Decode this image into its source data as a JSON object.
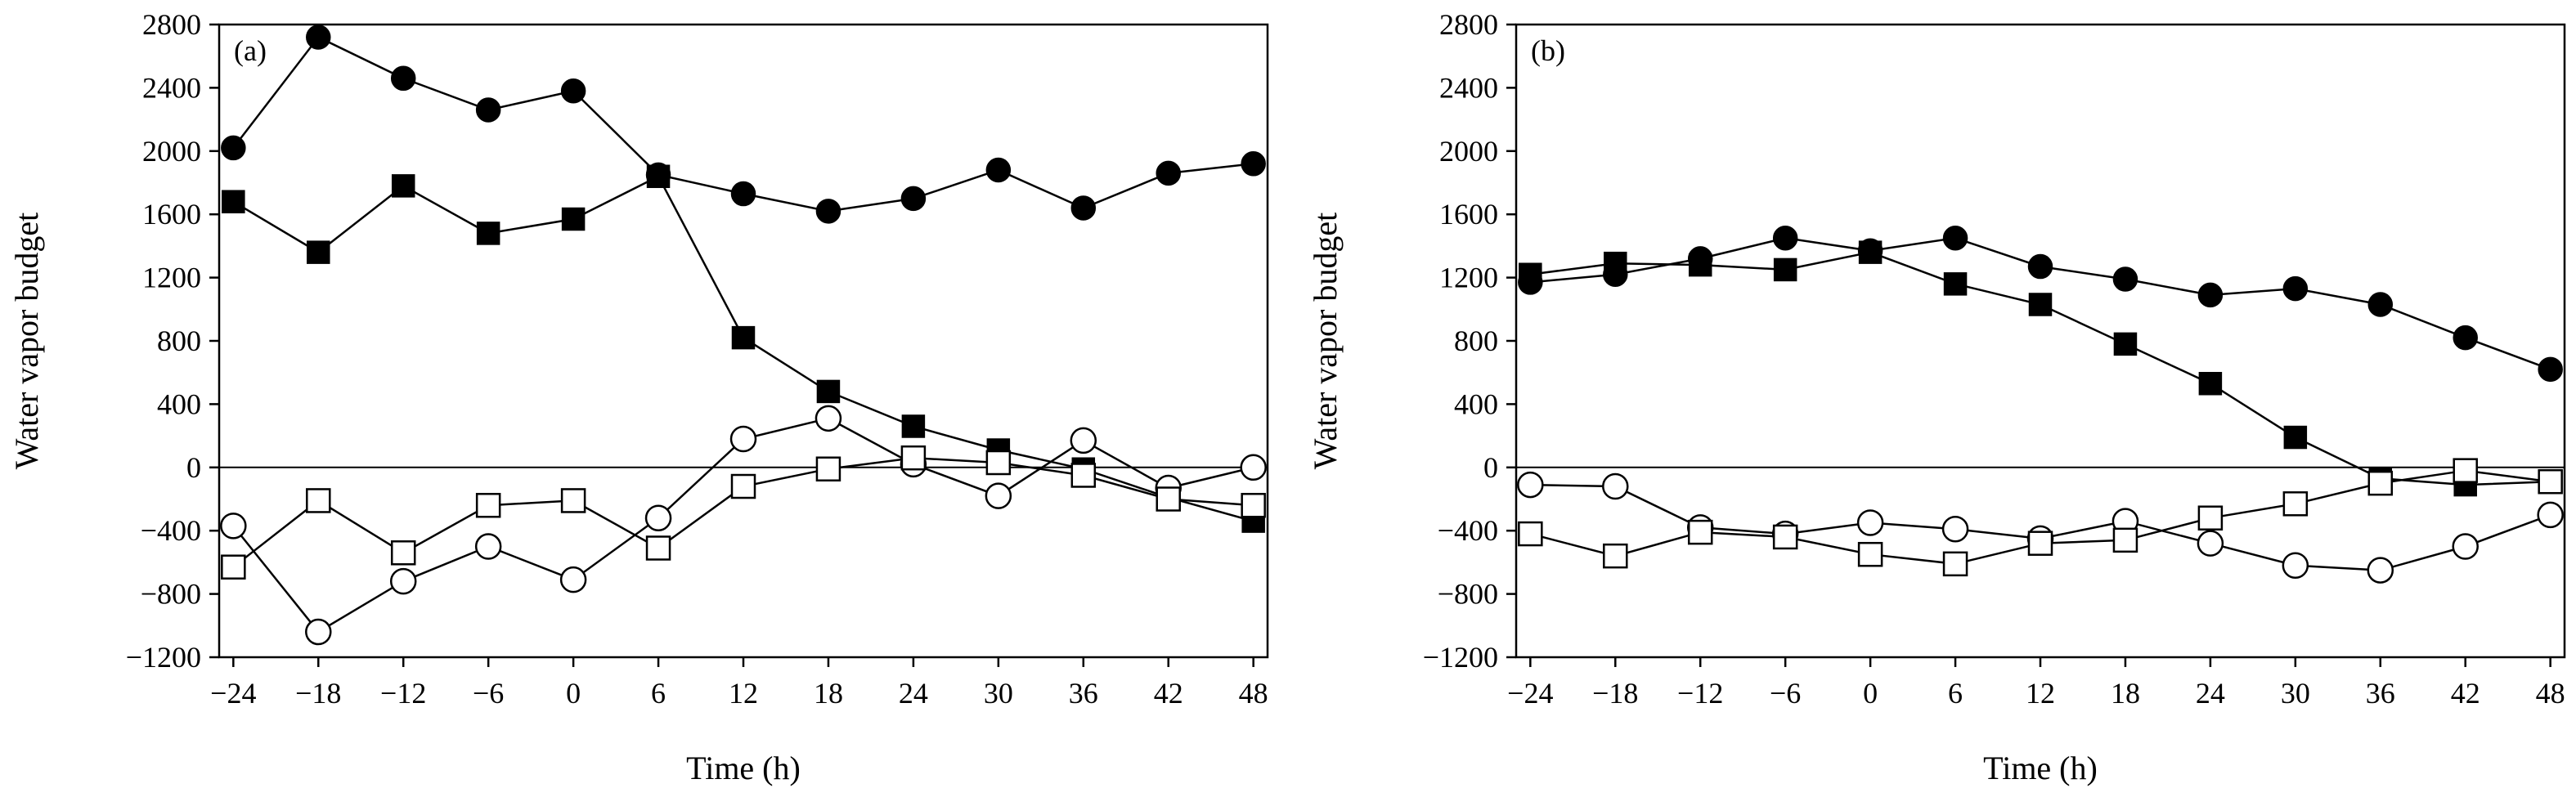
{
  "chart_data": [
    {
      "type": "line",
      "panel_label": "(a)",
      "xlabel": "Time (h)",
      "ylabel": "Water vapor budget",
      "x": [
        -24,
        -18,
        -12,
        -6,
        0,
        6,
        12,
        18,
        24,
        30,
        36,
        42,
        48
      ],
      "x_tick_labels": [
        "−24",
        "−18",
        "−12",
        "−6",
        "0",
        "6",
        "12",
        "18",
        "24",
        "30",
        "36",
        "42",
        "48"
      ],
      "y_ticks": [
        2800,
        2400,
        2000,
        1600,
        1200,
        800,
        400,
        0,
        -400,
        -800,
        -1200
      ],
      "y_tick_labels": [
        "2800",
        "2400",
        "2000",
        "1600",
        "1200",
        "800",
        "400",
        "0",
        "−400",
        "−800",
        "−1200"
      ],
      "ylim": [
        -1200,
        2800
      ],
      "xlim": [
        -25,
        49
      ],
      "zero_line": true,
      "series": [
        {
          "marker": "circle-filled",
          "values": [
            2020,
            2720,
            2460,
            2260,
            2380,
            1850,
            1730,
            1620,
            1700,
            1880,
            1640,
            1860,
            1920
          ]
        },
        {
          "marker": "square-filled",
          "values": [
            1680,
            1360,
            1780,
            1480,
            1570,
            1840,
            820,
            480,
            260,
            110,
            -10,
            -190,
            -340
          ]
        },
        {
          "marker": "circle-open",
          "values": [
            -370,
            -1040,
            -720,
            -500,
            -710,
            -320,
            180,
            310,
            20,
            -180,
            170,
            -130,
            0
          ]
        },
        {
          "marker": "square-open",
          "values": [
            -630,
            -210,
            -540,
            -240,
            -210,
            -510,
            -120,
            -10,
            60,
            30,
            -50,
            -200,
            -240
          ]
        }
      ]
    },
    {
      "type": "line",
      "panel_label": "(b)",
      "xlabel": "Time (h)",
      "ylabel": "Water vapor budget",
      "x": [
        -24,
        -18,
        -12,
        -6,
        0,
        6,
        12,
        18,
        24,
        30,
        36,
        42,
        48
      ],
      "x_tick_labels": [
        "−24",
        "−18",
        "−12",
        "−6",
        "0",
        "6",
        "12",
        "18",
        "24",
        "30",
        "36",
        "42",
        "48"
      ],
      "y_ticks": [
        2800,
        2400,
        2000,
        1600,
        1200,
        800,
        400,
        0,
        -400,
        -800,
        -1200
      ],
      "y_tick_labels": [
        "2800",
        "2400",
        "2000",
        "1600",
        "1200",
        "800",
        "400",
        "0",
        "−400",
        "−800",
        "−1200"
      ],
      "ylim": [
        -1200,
        2800
      ],
      "xlim": [
        -25,
        49
      ],
      "zero_line": true,
      "series": [
        {
          "marker": "circle-filled",
          "values": [
            1170,
            1220,
            1320,
            1450,
            1370,
            1450,
            1270,
            1190,
            1090,
            1130,
            1030,
            820,
            620
          ]
        },
        {
          "marker": "square-filled",
          "values": [
            1220,
            1290,
            1280,
            1250,
            1360,
            1160,
            1030,
            780,
            530,
            190,
            -70,
            -110,
            -90
          ]
        },
        {
          "marker": "circle-open",
          "values": [
            -110,
            -120,
            -380,
            -420,
            -350,
            -390,
            -450,
            -340,
            -480,
            -620,
            -650,
            -500,
            -300
          ]
        },
        {
          "marker": "square-open",
          "values": [
            -420,
            -560,
            -410,
            -440,
            -550,
            -610,
            -480,
            -460,
            -320,
            -230,
            -100,
            -20,
            -90
          ]
        }
      ]
    }
  ]
}
